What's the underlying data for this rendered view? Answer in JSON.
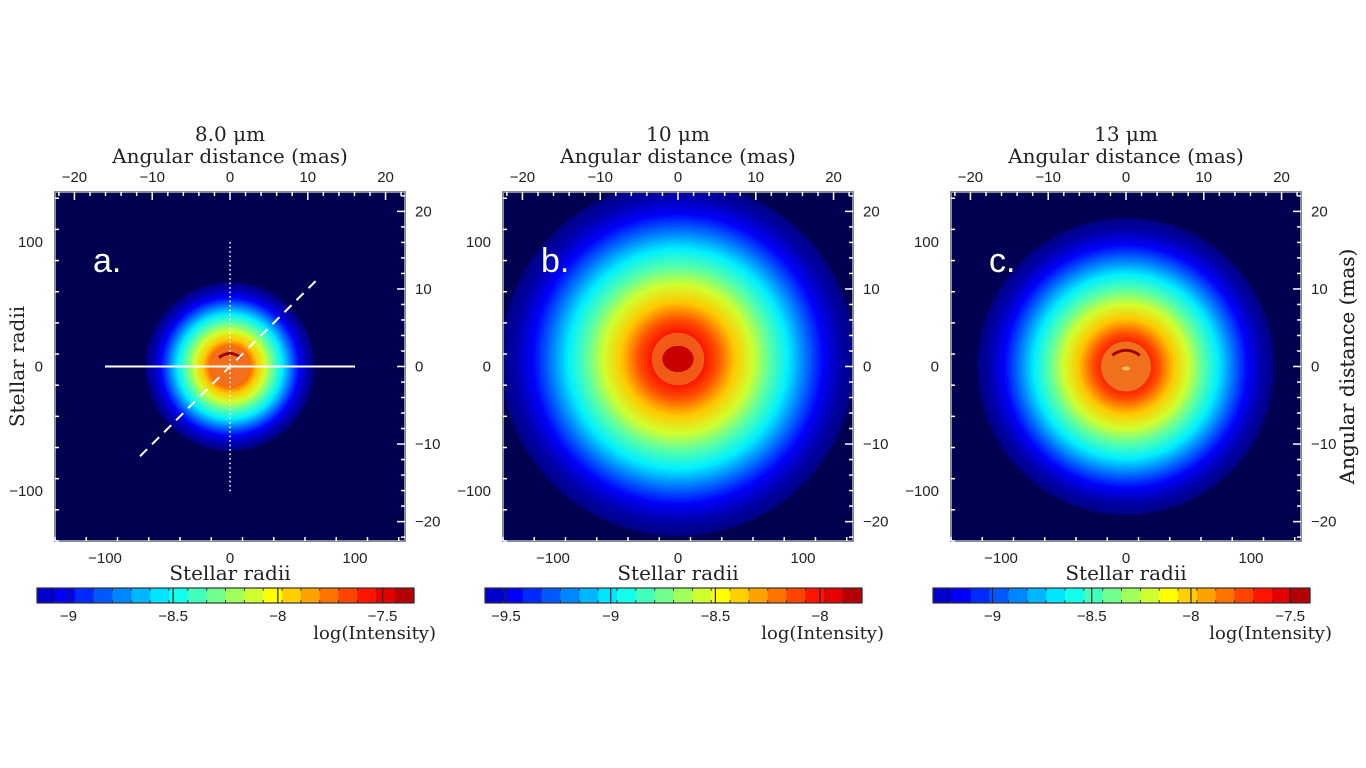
{
  "figure": {
    "common": {
      "top_axis_label": "Angular distance (mas)",
      "right_axis_label": "Angular distance (mas)",
      "bottom_axis_label": "Stellar radii",
      "left_axis_label": "Stellar radii",
      "colorbar_label": "log(Intensity)"
    }
  },
  "chart_data": [
    {
      "type": "heatmap",
      "panel_label": "a.",
      "title": "8.0 μm",
      "xlabel": "Stellar radii",
      "ylabel": "Stellar radii",
      "x2label": "Angular distance (mas)",
      "y2label": "Angular distance (mas)",
      "xlim": [
        -140,
        140
      ],
      "ylim": [
        -140,
        140
      ],
      "x2lim": [
        -22.5,
        22.5
      ],
      "y2lim": [
        -22.5,
        22.5
      ],
      "x_ticks": [
        -100,
        0,
        100
      ],
      "y_ticks": [
        -100,
        0,
        100
      ],
      "x2_ticks": [
        -20,
        -10,
        0,
        10,
        20
      ],
      "y2_ticks": [
        -20,
        -10,
        0,
        10,
        20
      ],
      "background_color": "#000050",
      "source": {
        "center": [
          0,
          0
        ],
        "outer_radius": 50,
        "core_radius": 16,
        "peak_log_intensity": -7.4,
        "floor_log_intensity": -9.2
      },
      "overlays": [
        {
          "style": "solid",
          "from": [
            -100,
            0
          ],
          "to": [
            100,
            0
          ]
        },
        {
          "style": "dotted",
          "from": [
            0,
            -100
          ],
          "to": [
            0,
            100
          ]
        },
        {
          "style": "dashed",
          "from": [
            -72,
            -72
          ],
          "to": [
            72,
            72
          ]
        }
      ],
      "colorbar": {
        "range": [
          -9.15,
          -7.35
        ],
        "ticks": [
          -9,
          -8.5,
          -8,
          -7.5
        ],
        "label": "log(Intensity)"
      }
    },
    {
      "type": "heatmap",
      "panel_label": "b.",
      "title": "10 μm",
      "xlabel": "Stellar radii",
      "ylabel": "",
      "x2label": "Angular distance (mas)",
      "y2label": "",
      "xlim": [
        -140,
        140
      ],
      "ylim": [
        -140,
        140
      ],
      "x2lim": [
        -22.5,
        22.5
      ],
      "y2lim": [
        -22.5,
        22.5
      ],
      "x_ticks": [
        -100,
        0,
        100
      ],
      "y_ticks": [
        -100,
        0,
        100
      ],
      "x2_ticks": [
        -20,
        -10,
        0,
        10,
        20
      ],
      "y2_ticks": [
        -20,
        -10,
        0,
        10,
        20
      ],
      "background_color": "#000050",
      "source": {
        "center": [
          0,
          6
        ],
        "outer_radius": 105,
        "core_radius": 10,
        "peak_log_intensity": -7.8,
        "floor_log_intensity": -9.6
      },
      "overlays": [],
      "colorbar": {
        "range": [
          -9.6,
          -7.8
        ],
        "ticks": [
          -9.5,
          -9,
          -8.5,
          -8
        ],
        "label": "log(Intensity)"
      }
    },
    {
      "type": "heatmap",
      "panel_label": "c.",
      "title": "13 μm",
      "xlabel": "Stellar radii",
      "ylabel": "",
      "x2label": "Angular distance (mas)",
      "y2label": "Angular distance (mas)",
      "xlim": [
        -140,
        140
      ],
      "ylim": [
        -140,
        140
      ],
      "x2lim": [
        -22.5,
        22.5
      ],
      "y2lim": [
        -22.5,
        22.5
      ],
      "x_ticks": [
        -100,
        0,
        100
      ],
      "y_ticks": [
        -100,
        0,
        100
      ],
      "x2_ticks": [
        -20,
        -10,
        0,
        10,
        20
      ],
      "y2_ticks": [
        -20,
        -10,
        0,
        10,
        20
      ],
      "background_color": "#000050",
      "source": {
        "center": [
          0,
          0
        ],
        "outer_radius": 88,
        "core_radius": 20,
        "peak_log_intensity": -7.4,
        "floor_log_intensity": -9.3
      },
      "overlays": [],
      "colorbar": {
        "range": [
          -9.3,
          -7.4
        ],
        "ticks": [
          -9,
          -8.5,
          -8,
          -7.5
        ],
        "label": "log(Intensity)"
      }
    }
  ]
}
